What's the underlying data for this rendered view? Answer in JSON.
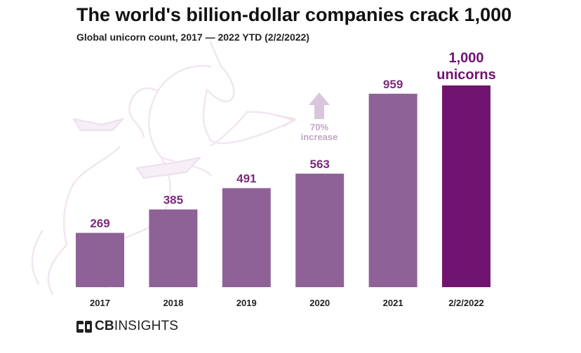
{
  "header": {
    "title": "The world's billion-dollar companies crack 1,000",
    "subtitle": "Global unicorn count, 2017 — 2022 YTD (2/2/2022)"
  },
  "chart_data": {
    "type": "bar",
    "title": "The world's billion-dollar companies crack 1,000",
    "subtitle": "Global unicorn count, 2017 — 2022 YTD (2/2/2022)",
    "xlabel": "",
    "ylabel": "",
    "categories": [
      "2017",
      "2018",
      "2019",
      "2020",
      "2021",
      "2/2/2022"
    ],
    "values": [
      269,
      385,
      491,
      563,
      959,
      1000
    ],
    "data_labels": [
      "269",
      "385",
      "491",
      "563",
      "959",
      "1,000 unicorns"
    ],
    "ylim": [
      0,
      1000
    ],
    "grid": false,
    "annotation": {
      "text": "70% increase",
      "line1": "70%",
      "line2": "increase",
      "from_category": "2020",
      "to_category": "2021"
    },
    "colors": {
      "bar": "#8e6297",
      "highlight_bar": "#711471",
      "label": "#7a2a7a",
      "arrow": "#d9c6dc",
      "background_art": "#f3ebf3"
    }
  },
  "footer": {
    "brand_bold": "CB",
    "brand_rest": "INSIGHTS",
    "logo_icon": "cb-insights-logo-icon"
  }
}
